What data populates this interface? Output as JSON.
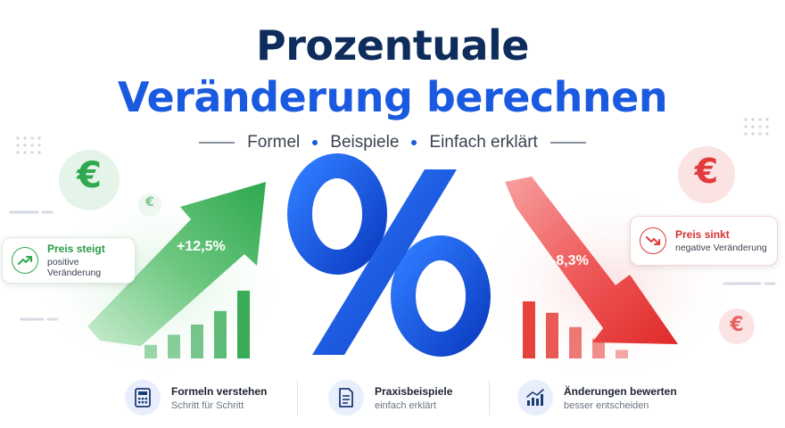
{
  "header": {
    "title_line1": "Prozentuale",
    "title_line2": "Veränderung berechnen",
    "subtitle_items": [
      "Formel",
      "Beispiele",
      "Einfach erklärt"
    ]
  },
  "icons": {
    "currency_symbol": "€",
    "percent_symbol": "%"
  },
  "increase": {
    "label": "+12,5%",
    "chip_title": "Preis steigt",
    "chip_subtitle": "positive Veränderung",
    "bar_levels": [
      0.2,
      0.35,
      0.5,
      0.7,
      1.0
    ],
    "color": "#2fa84f"
  },
  "decrease": {
    "label": "-8,3%",
    "chip_title": "Preis sinkt",
    "chip_subtitle": "negative Veränderung",
    "bar_levels": [
      1.0,
      0.8,
      0.55,
      0.35,
      0.15
    ],
    "color": "#e53935"
  },
  "features": [
    {
      "icon": "calculator-icon",
      "title": "Formeln verstehen",
      "subtitle": "Schritt für Schritt"
    },
    {
      "icon": "document-icon",
      "title": "Praxisbeispiele",
      "subtitle": "einfach erklärt"
    },
    {
      "icon": "chart-icon",
      "title": "Änderungen bewerten",
      "subtitle": "besser entscheiden"
    }
  ],
  "colors": {
    "navy": "#0f2d5c",
    "blue": "#1a5ae0",
    "green": "#2fa84f",
    "red": "#e53935"
  }
}
